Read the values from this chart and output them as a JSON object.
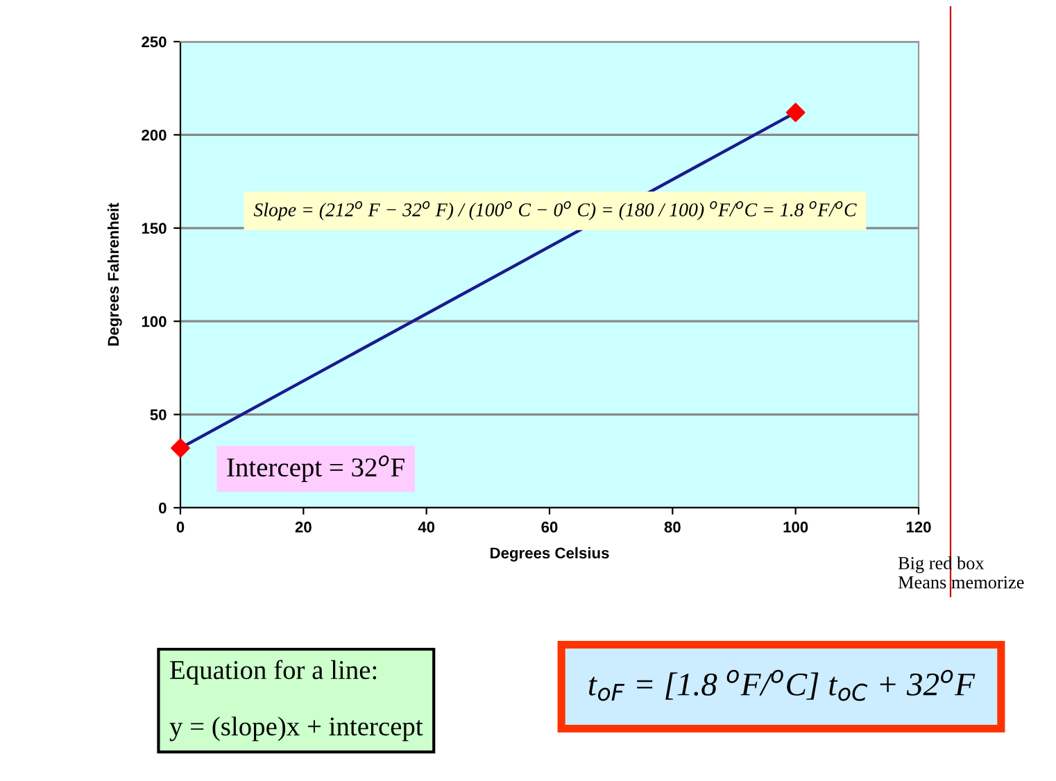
{
  "chart_data": {
    "type": "line",
    "xlabel": "Degrees Celsius",
    "ylabel": "Degrees Fahrenheit",
    "x": [
      0,
      100
    ],
    "series": [
      {
        "color": "#1a1a8c",
        "marker": "none",
        "values": [
          32,
          212
        ]
      },
      {
        "type": "scatter",
        "color": "#ff0000",
        "marker": "diamond",
        "values": [
          32,
          212
        ]
      }
    ],
    "xlim": [
      0,
      120
    ],
    "xticks": [
      0,
      20,
      40,
      60,
      80,
      100,
      120
    ],
    "ylim": [
      0,
      250
    ],
    "yticks": [
      0,
      50,
      100,
      150,
      200,
      250
    ],
    "grid": "y",
    "legend": false,
    "annotations": [
      "Slope = (212$^{o}$ F − 32$^{o}$ F) / (100$^{o}$ C − 0$^{o}$ C) = (180 / 100) $^{o}$F/$^{o}$C = 1.8 $^{o}$F/$^{o}$C",
      "Intercept = 32$^{o}$F",
      "Equation for a line:\n\ny = (slope)x + intercept",
      "t$_{oF}$ = [1.8 $^{o}$F/$^{o}$C] t$_{oC}$ + 32$^{o}$F",
      "Big red box\nMeans memorize"
    ]
  }
}
